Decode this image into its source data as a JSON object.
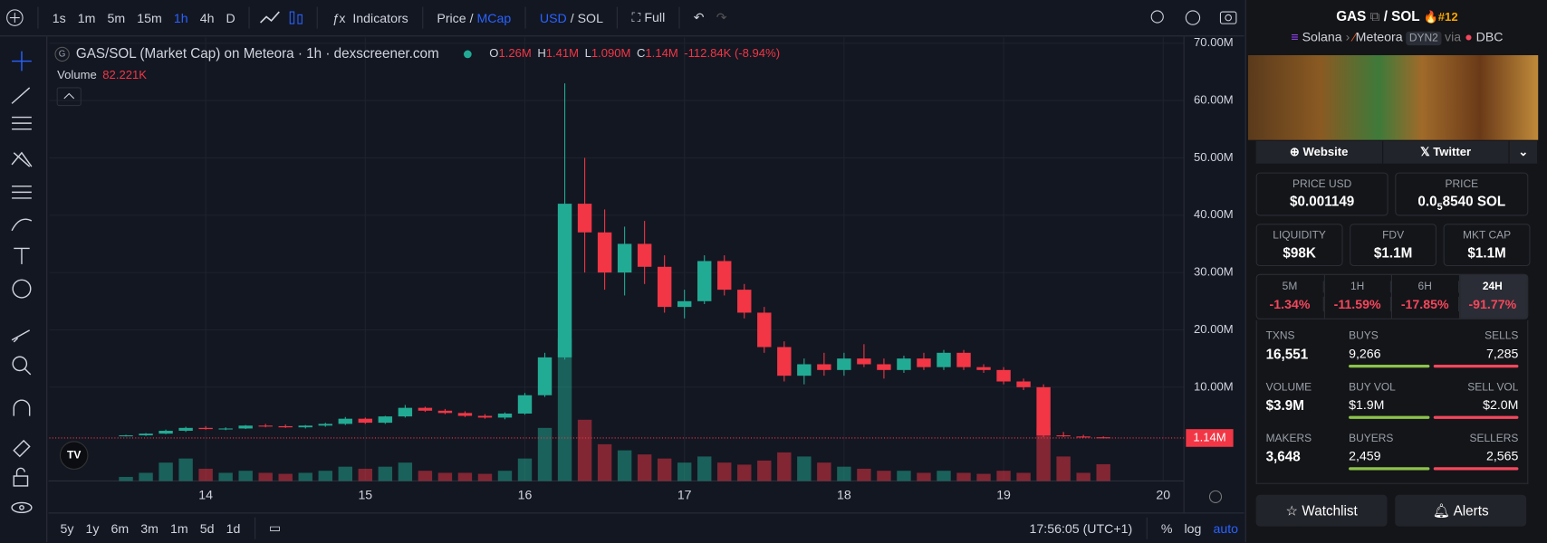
{
  "toolbar": {
    "intervals": [
      "1s",
      "1m",
      "5m",
      "15m",
      "1h",
      "4h",
      "D"
    ],
    "indicators": "Indicators",
    "price": "Price",
    "price_sep": "/",
    "mcap": "MCap",
    "usd": "USD",
    "currency_sep": "/",
    "sol": "SOL",
    "full": "Full"
  },
  "chart_data": {
    "type": "candlestick",
    "title": "GAS/SOL (Market Cap) on Meteora · 1h · dexscreener.com",
    "ohlc_legend": [
      {
        "key": "O",
        "value": 1.26,
        "label": "1.26M"
      },
      {
        "key": "H",
        "value": 1.41,
        "label": "1.41M"
      },
      {
        "key": "L",
        "value": 1.09,
        "label": "1.090M"
      },
      {
        "key": "C",
        "value": 1.14,
        "label": "1.14M"
      }
    ],
    "change": {
      "value": -0.11284,
      "label": "-112.84K (-8.94%)"
    },
    "volume_legend": {
      "name": "Volume",
      "value": 82.221,
      "label": "82.221K"
    },
    "up_color": "#22ab94",
    "down_color": "#f23645",
    "x": [
      13.5,
      13.625,
      13.75,
      13.875,
      14.0,
      14.125,
      14.25,
      14.375,
      14.5,
      14.625,
      14.75,
      14.875,
      15.0,
      15.125,
      15.25,
      15.375,
      15.5,
      15.625,
      15.75,
      15.875,
      16.0,
      16.125,
      16.25,
      16.375,
      16.5,
      16.625,
      16.75,
      16.875,
      17.0,
      17.125,
      17.25,
      17.375,
      17.5,
      17.625,
      17.75,
      17.875,
      18.0,
      18.125,
      18.25,
      18.375,
      18.5,
      18.625,
      18.75,
      18.875,
      19.0,
      19.125,
      19.25,
      19.375,
      19.5,
      19.625
    ],
    "open": [
      1.5,
      1.6,
      1.9,
      2.4,
      2.9,
      2.7,
      2.8,
      3.3,
      3.2,
      3.0,
      3.3,
      3.6,
      4.5,
      3.8,
      4.9,
      6.4,
      5.9,
      5.5,
      5.0,
      4.7,
      5.4,
      8.6,
      15.2,
      42.0,
      37.0,
      30.0,
      35.0,
      31.0,
      24.0,
      25.0,
      32.0,
      27.0,
      23.0,
      17.0,
      12.0,
      14.0,
      13.0,
      15.0,
      14.0,
      13.0,
      15.0,
      13.5,
      16.0,
      13.5,
      13.0,
      11.0,
      10.0,
      1.6,
      1.4,
      1.26
    ],
    "high": [
      1.7,
      2.0,
      2.6,
      3.1,
      3.2,
      3.0,
      3.4,
      3.6,
      3.5,
      3.4,
      3.8,
      4.8,
      4.7,
      5.0,
      6.9,
      6.6,
      6.2,
      5.8,
      5.3,
      5.6,
      9.0,
      16.0,
      63.0,
      50.0,
      41.0,
      38.0,
      39.0,
      33.0,
      27.0,
      33.0,
      33.0,
      28.0,
      24.0,
      18.0,
      15.0,
      16.0,
      16.0,
      17.5,
      15.0,
      15.5,
      16.0,
      16.5,
      16.5,
      14.0,
      13.5,
      11.5,
      10.5,
      2.2,
      1.7,
      1.41
    ],
    "low": [
      1.4,
      1.5,
      1.8,
      2.2,
      2.6,
      2.5,
      2.7,
      3.0,
      2.9,
      2.8,
      3.1,
      3.4,
      3.6,
      3.6,
      4.7,
      5.7,
      5.3,
      4.8,
      4.5,
      4.4,
      5.2,
      8.3,
      14.8,
      30.0,
      27.0,
      26.0,
      28.0,
      23.0,
      22.0,
      24.5,
      26.0,
      22.0,
      16.0,
      11.0,
      10.5,
      12.0,
      12.0,
      13.5,
      11.5,
      12.5,
      13.0,
      13.0,
      13.0,
      12.5,
      10.5,
      9.5,
      1.3,
      1.3,
      1.2,
      1.09
    ],
    "close": [
      1.6,
      1.9,
      2.4,
      2.9,
      2.7,
      2.8,
      3.3,
      3.2,
      3.0,
      3.3,
      3.6,
      4.5,
      3.8,
      4.9,
      6.4,
      5.9,
      5.5,
      5.0,
      4.7,
      5.4,
      8.6,
      15.2,
      42.0,
      37.0,
      30.0,
      35.0,
      31.0,
      24.0,
      25.0,
      32.0,
      27.0,
      23.0,
      17.0,
      12.0,
      14.0,
      13.0,
      15.0,
      14.0,
      13.0,
      15.0,
      13.5,
      16.0,
      13.5,
      13.0,
      11.0,
      10.0,
      1.6,
      1.5,
      1.25,
      1.14
    ],
    "volume": [
      20,
      40,
      90,
      110,
      60,
      40,
      50,
      40,
      35,
      40,
      50,
      70,
      60,
      70,
      90,
      50,
      40,
      40,
      35,
      50,
      110,
      260,
      700,
      300,
      180,
      150,
      130,
      110,
      90,
      120,
      90,
      80,
      100,
      140,
      120,
      90,
      70,
      60,
      50,
      50,
      40,
      50,
      40,
      35,
      50,
      40,
      260,
      120,
      40,
      82.221
    ],
    "last_price": {
      "value": 1.14,
      "label": "1.14M"
    },
    "xlim": [
      13.02,
      20.13
    ],
    "xticks": [
      14,
      15,
      16,
      17,
      18,
      19,
      20
    ],
    "ylim": [
      -6.36,
      71.0
    ],
    "yticks": [
      {
        "value": 10,
        "label": "10.00M"
      },
      {
        "value": 20,
        "label": "20.00M"
      },
      {
        "value": 30,
        "label": "30.00M"
      },
      {
        "value": 40,
        "label": "40.00M"
      },
      {
        "value": 50,
        "label": "50.00M"
      },
      {
        "value": 60,
        "label": "60.00M"
      },
      {
        "value": 70,
        "label": "70.00M"
      }
    ],
    "grid": true
  },
  "bottom_bar": {
    "ranges": [
      "5y",
      "1y",
      "6m",
      "3m",
      "1m",
      "5d",
      "1d"
    ],
    "clock": "17:56:05 (UTC+1)",
    "percent": "%",
    "log": "log",
    "auto": "auto"
  },
  "panel": {
    "pair": {
      "base": "GAS",
      "sep": "/",
      "quote": "SOL",
      "rank": "#12"
    },
    "route": {
      "chain": "Solana",
      "dex": "Meteora",
      "tag": "DYN2",
      "via": "via",
      "source": "DBC"
    },
    "links": [
      "Website",
      "Twitter"
    ],
    "price_usd": {
      "label": "PRICE USD",
      "value": "$0.001149"
    },
    "price": {
      "label": "PRICE",
      "lead": "0.0",
      "zeros": "5",
      "rest": "8540 SOL"
    },
    "metrics": [
      {
        "label": "LIQUIDITY",
        "value": "$98K"
      },
      {
        "label": "FDV",
        "value": "$1.1M"
      },
      {
        "label": "MKT CAP",
        "value": "$1.1M"
      }
    ],
    "changes": [
      {
        "period": "5M",
        "value": "-1.34%"
      },
      {
        "period": "1H",
        "value": "-11.59%"
      },
      {
        "period": "6H",
        "value": "-17.85%"
      },
      {
        "period": "24H",
        "value": "-91.77%"
      }
    ],
    "stats": [
      {
        "label": "TXNS",
        "value": "16,551",
        "left_label": "BUYS",
        "left": "9,266",
        "right_label": "SELLS",
        "right": "7,285"
      },
      {
        "label": "VOLUME",
        "value": "$3.9M",
        "left_label": "BUY VOL",
        "left": "$1.9M",
        "right_label": "SELL VOL",
        "right": "$2.0M"
      },
      {
        "label": "MAKERS",
        "value": "3,648",
        "left_label": "BUYERS",
        "left": "2,459",
        "right_label": "SELLERS",
        "right": "2,565"
      }
    ],
    "actions": [
      "Watchlist",
      "Alerts"
    ]
  }
}
